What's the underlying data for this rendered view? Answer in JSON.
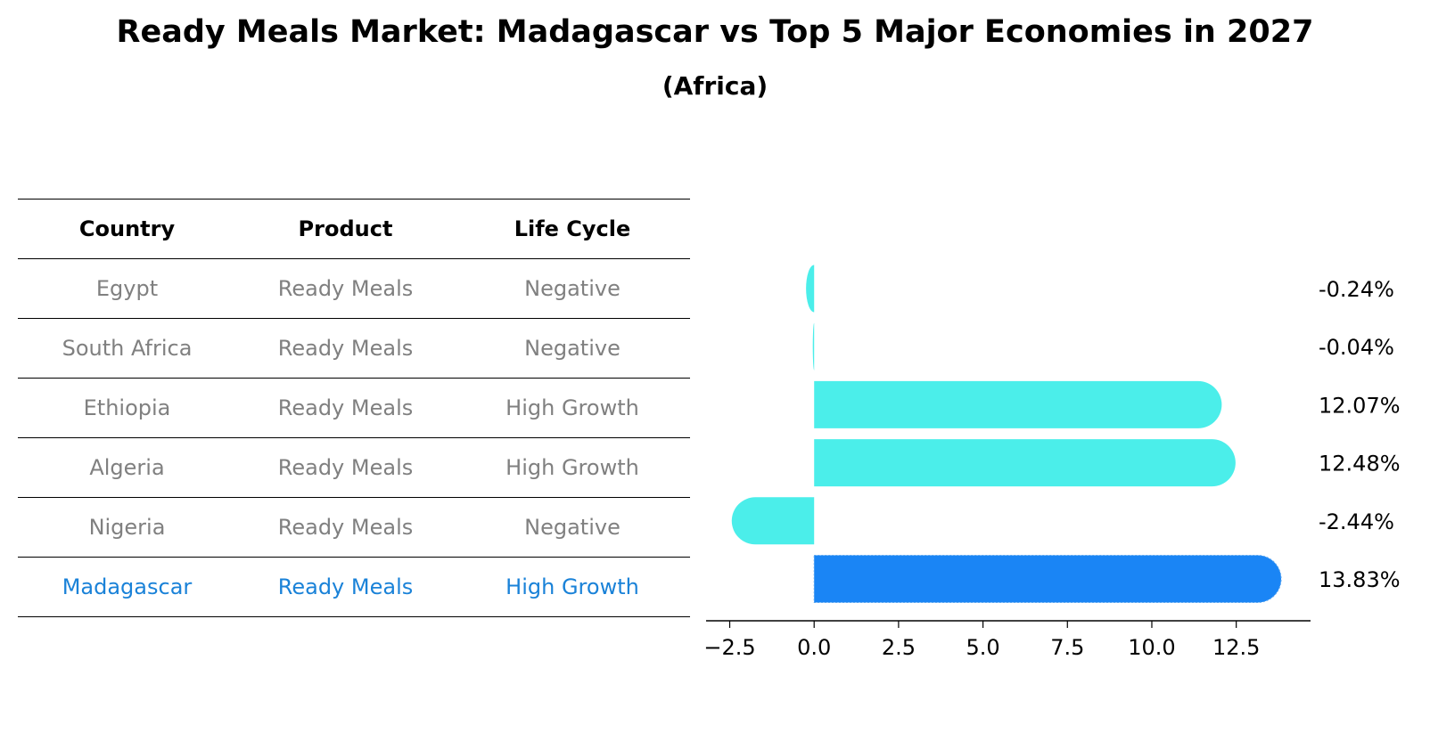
{
  "title": "Ready Meals Market: Madagascar vs Top 5 Major Economies in 2027",
  "subtitle": "(Africa)",
  "table": {
    "headers": [
      "Country",
      "Product",
      "Life Cycle"
    ],
    "rows": [
      {
        "country": "Egypt",
        "product": "Ready Meals",
        "life_cycle": "Negative"
      },
      {
        "country": "South Africa",
        "product": "Ready Meals",
        "life_cycle": "Negative"
      },
      {
        "country": "Ethiopia",
        "product": "Ready Meals",
        "life_cycle": "High Growth"
      },
      {
        "country": "Algeria",
        "product": "Ready Meals",
        "life_cycle": "High Growth"
      },
      {
        "country": "Nigeria",
        "product": "Ready Meals",
        "life_cycle": "Negative"
      },
      {
        "country": "Madagascar",
        "product": "Ready Meals",
        "life_cycle": "High Growth"
      }
    ]
  },
  "chart_data": {
    "type": "bar",
    "orientation": "horizontal",
    "categories": [
      "Egypt",
      "South Africa",
      "Ethiopia",
      "Algeria",
      "Nigeria",
      "Madagascar"
    ],
    "values": [
      -0.24,
      -0.04,
      12.07,
      12.48,
      -2.44,
      13.83
    ],
    "value_labels": [
      "-0.24%",
      "-0.04%",
      "12.07%",
      "12.48%",
      "-2.44%",
      "13.83%"
    ],
    "highlight_index": 5,
    "xlim": [
      -3.2,
      14.7
    ],
    "xticks": [
      -2.5,
      0.0,
      2.5,
      5.0,
      7.5,
      10.0,
      12.5
    ],
    "xtick_labels": [
      "−2.5",
      "0.0",
      "2.5",
      "5.0",
      "7.5",
      "10.0",
      "12.5"
    ],
    "colors": {
      "default": "#4beeea",
      "highlight": "#1a85f5"
    }
  },
  "colors": {
    "highlight_text": "#1a82d8",
    "muted_text": "#808080"
  }
}
